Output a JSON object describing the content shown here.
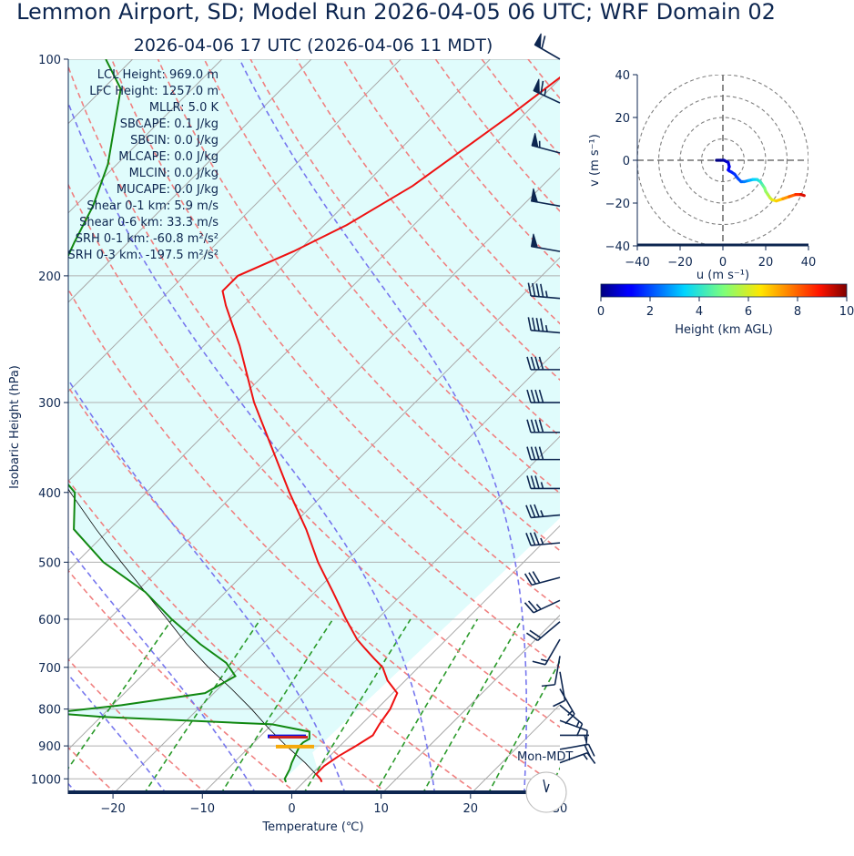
{
  "header": {
    "title": "Lemmon Airport, SD; Model Run 2026-04-05 06 UTC; WRF Domain 02",
    "subtitle": "2026-04-06 17 UTC  (2026-04-06 11 MDT)"
  },
  "stats": [
    "LCL Height: 969.0 m",
    "LFC Height: 1257.0 m",
    "MLLR: 5.0 K",
    "SBCAPE: 0.1 J/kg",
    "SBCIN: 0.0 J/kg",
    "MLCAPE: 0.0 J/kg",
    "MLCIN: 0.0 J/kg",
    "MUCAPE: 0.0 J/kg",
    "Shear 0-1 km: 5.9 m/s",
    "Shear 0-6 km: 33.3 m/s",
    "SRH 0-1 km: -60.8 m²/s²",
    "SRH 0-3 km: -197.5 m²/s²"
  ],
  "colors": {
    "axis": "#0d2650",
    "temperature": "#ee1111",
    "dewpoint": "#118811",
    "parcel": "#000000",
    "cape_fill": "#e0fcfc",
    "dry_adiabat": "#f08080",
    "moist_adiabat": "#7777ee",
    "mixing_ratio": "#2a9a2a",
    "isotherm": "#a8a8a8"
  },
  "chart_data": [
    {
      "type": "line",
      "name": "skew-t",
      "xlabel": "Temperature (℃)",
      "ylabel": "Isobaric Height (hPa)",
      "x_ticks": [
        -20,
        -10,
        0,
        10,
        20,
        30
      ],
      "x_tick_labels": [
        "−20",
        "−10",
        "0",
        "10",
        "20",
        "30"
      ],
      "y_ticks": [
        100,
        200,
        300,
        400,
        500,
        600,
        700,
        800,
        900,
        1000
      ],
      "xlim": [
        -25,
        30
      ],
      "ylim": [
        1050,
        100
      ],
      "y_scale": "log",
      "skew_deg": 45,
      "grid": true,
      "temperature": {
        "pressure": [
          1010,
          1000,
          985,
          960,
          930,
          900,
          870,
          840,
          800,
          760,
          730,
          700,
          680,
          660,
          640,
          600,
          550,
          500,
          450,
          400,
          350,
          300,
          250,
          220,
          210,
          200,
          185,
          170,
          150,
          120,
          100
        ],
        "values": [
          2.0,
          1.5,
          0.5,
          0.5,
          1.0,
          1.8,
          2.5,
          2.0,
          1.5,
          0.5,
          -2.0,
          -4.0,
          -6.0,
          -8.0,
          -10.0,
          -13.5,
          -18.0,
          -23.0,
          -28.0,
          -34.0,
          -40.5,
          -48.0,
          -56.0,
          -62.0,
          -64.0,
          -64.0,
          -60.5,
          -57.5,
          -54.5,
          -51.5,
          -49.5
        ]
      },
      "dewpoint": {
        "pressure": [
          1010,
          1000,
          970,
          950,
          925,
          900,
          890,
          880,
          860,
          840,
          830,
          820,
          810,
          790,
          760,
          720,
          690,
          650,
          600,
          550,
          500,
          450,
          400,
          370,
          350,
          300,
          270,
          230,
          200,
          180,
          160,
          140,
          110,
          100
        ],
        "values": [
          -2.0,
          -2.5,
          -3.0,
          -3.5,
          -4.0,
          -4.5,
          -4.5,
          -4.2,
          -5.0,
          -10.0,
          -20.0,
          -30.0,
          -36.0,
          -29.0,
          -21.0,
          -19.5,
          -22.0,
          -27.0,
          -33.0,
          -39.0,
          -47.0,
          -54.0,
          -58.0,
          -63.0,
          -66.0,
          -71.0,
          -76.0,
          -81.0,
          -84.0,
          -86.0,
          -88.0,
          -91.0,
          -98.0,
          -103.0
        ]
      },
      "parcel": {
        "pressure": [
          1000,
          950,
          900,
          850,
          800,
          750,
          700,
          650,
          600,
          550,
          500,
          450,
          400,
          350,
          300,
          250,
          200
        ],
        "values": [
          1.5,
          -2.0,
          -6.0,
          -10.0,
          -14.0,
          -18.5,
          -23.5,
          -28.5,
          -33.5,
          -39.0,
          -45.0,
          -51.5,
          -58.5,
          -66.0,
          -74.5,
          -84.0,
          -95.0
        ]
      },
      "levels": {
        "lcl_pressure": 873,
        "lfc_pressure": 860,
        "el_pressure": 902
      },
      "wind_barbs": {
        "pressure": [
          100,
          115,
          135,
          160,
          185,
          215,
          240,
          270,
          300,
          330,
          360,
          395,
          430,
          470,
          525,
          565,
          605,
          640,
          675,
          710,
          750,
          790,
          830,
          870,
          910,
          950
        ],
        "speed_kt": [
          60,
          65,
          55,
          50,
          50,
          45,
          45,
          40,
          40,
          40,
          40,
          35,
          35,
          35,
          30,
          25,
          20,
          15,
          10,
          10,
          15,
          15,
          10,
          5,
          20,
          15
        ],
        "direction_deg": [
          300,
          295,
          285,
          280,
          280,
          275,
          275,
          270,
          270,
          270,
          270,
          270,
          265,
          265,
          255,
          245,
          230,
          210,
          190,
          170,
          150,
          130,
          110,
          90,
          80,
          70
        ]
      },
      "annotation": "Mon-MDT",
      "clock": "11 MDT"
    },
    {
      "type": "line",
      "name": "hodograph",
      "xlabel": "u (m s⁻¹)",
      "ylabel": "v (m s⁻¹)",
      "xlim": [
        -40,
        40
      ],
      "ylim": [
        -40,
        40
      ],
      "x_ticks": [
        -40,
        -20,
        0,
        20,
        40
      ],
      "y_ticks": [
        -40,
        -20,
        0,
        20,
        40
      ],
      "x_tick_labels": [
        "−40",
        "−20",
        "0",
        "20",
        "40"
      ],
      "y_tick_labels": [
        "−40",
        "−20",
        "0",
        "20",
        "40"
      ],
      "rings": [
        10,
        20,
        30,
        40
      ],
      "u": [
        -3.0,
        -1.0,
        0.5,
        1.5,
        2.5,
        3.0,
        2.5,
        3.0,
        4.0,
        5.5,
        7.0,
        8.5,
        10.0,
        12.0,
        14.0,
        16.0,
        17.5,
        18.5,
        19.5,
        20.0,
        21.0,
        22.0,
        23.0,
        25.0,
        28.0,
        31.0,
        34.0,
        36.5,
        38.0
      ],
      "v": [
        0.0,
        0.0,
        0.0,
        -0.5,
        -1.0,
        -3.0,
        -4.5,
        -5.0,
        -5.5,
        -6.5,
        -8.5,
        -10.0,
        -10.0,
        -9.5,
        -9.0,
        -9.0,
        -10.0,
        -11.5,
        -13.0,
        -14.5,
        -16.0,
        -17.5,
        -18.5,
        -19.0,
        -18.0,
        -17.0,
        -16.0,
        -16.0,
        -16.5
      ],
      "height_km": [
        0.0,
        0.2,
        0.4,
        0.6,
        0.8,
        1.0,
        1.2,
        1.4,
        1.6,
        1.8,
        2.0,
        2.3,
        2.6,
        3.0,
        3.4,
        3.8,
        4.2,
        4.6,
        5.0,
        5.3,
        5.6,
        5.9,
        6.3,
        6.8,
        7.4,
        8.0,
        8.6,
        9.2,
        9.8
      ]
    },
    {
      "type": "heatmap",
      "name": "colorbar",
      "xlabel": "Height (km AGL)",
      "range": [
        0,
        10
      ],
      "ticks": [
        0,
        2,
        4,
        6,
        8,
        10
      ],
      "colormap": "jet"
    }
  ]
}
